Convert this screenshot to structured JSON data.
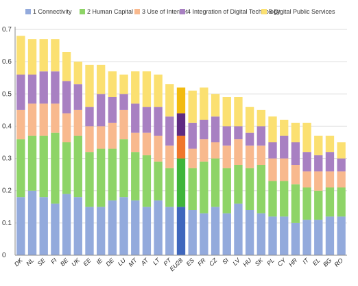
{
  "colors": {
    "c1": "#93aadc",
    "c2": "#8ed467",
    "c3": "#f8b98e",
    "c4": "#a880c2",
    "c5": "#fbe071",
    "avg1": "#3f67bd",
    "avg2": "#3fb53a",
    "avg3": "#f0772c",
    "avg4": "#5f2a82",
    "avg5": "#f2bb10",
    "grid": "#dcdcdc",
    "axis": "#888888"
  },
  "chart_data": {
    "type": "bar",
    "stacked": true,
    "grid": true,
    "legend_position": "top",
    "ylim": [
      0,
      0.7
    ],
    "yticks": [
      "0",
      "0.1",
      "0.2",
      "0.3",
      "0.4",
      "0.5",
      "0.6",
      "0.7"
    ],
    "ytick_values": [
      0,
      0.1,
      0.2,
      0.3,
      0.4,
      0.5,
      0.6,
      0.7
    ],
    "highlight_category": "EU28",
    "categories": [
      "DK",
      "NL",
      "SE",
      "FI",
      "BE",
      "UK",
      "EE",
      "IE",
      "DE",
      "LU",
      "MT",
      "AT",
      "LT",
      "PT",
      "EU28",
      "ES",
      "FR",
      "CZ",
      "SI",
      "LV",
      "HU",
      "SK",
      "PL",
      "CY",
      "HR",
      "IT",
      "EL",
      "BG",
      "RO"
    ],
    "series": [
      {
        "name": "1 Connectivity",
        "color_key": "c1",
        "values": [
          0.18,
          0.2,
          0.18,
          0.16,
          0.19,
          0.18,
          0.15,
          0.15,
          0.17,
          0.18,
          0.17,
          0.15,
          0.17,
          0.15,
          0.15,
          0.14,
          0.13,
          0.15,
          0.13,
          0.16,
          0.14,
          0.13,
          0.12,
          0.12,
          0.1,
          0.11,
          0.11,
          0.12,
          0.12
        ]
      },
      {
        "name": "2 Human Capital",
        "color_key": "c2",
        "values": [
          0.18,
          0.17,
          0.19,
          0.22,
          0.16,
          0.19,
          0.17,
          0.18,
          0.16,
          0.18,
          0.15,
          0.16,
          0.12,
          0.12,
          0.15,
          0.13,
          0.16,
          0.15,
          0.14,
          0.12,
          0.13,
          0.15,
          0.11,
          0.11,
          0.12,
          0.1,
          0.09,
          0.09,
          0.09
        ]
      },
      {
        "name": "3 Use of Internet",
        "color_key": "c3",
        "values": [
          0.09,
          0.1,
          0.1,
          0.09,
          0.09,
          0.08,
          0.08,
          0.07,
          0.08,
          0.09,
          0.06,
          0.07,
          0.08,
          0.07,
          0.07,
          0.06,
          0.07,
          0.05,
          0.07,
          0.08,
          0.07,
          0.06,
          0.07,
          0.07,
          0.06,
          0.05,
          0.06,
          0.05,
          0.05
        ]
      },
      {
        "name": "4 Integration of Digital Technology",
        "color_key": "c4",
        "values": [
          0.11,
          0.09,
          0.1,
          0.1,
          0.1,
          0.08,
          0.06,
          0.1,
          0.08,
          0.05,
          0.09,
          0.08,
          0.09,
          0.09,
          0.07,
          0.08,
          0.06,
          0.08,
          0.06,
          0.04,
          0.04,
          0.06,
          0.05,
          0.07,
          0.07,
          0.06,
          0.05,
          0.06,
          0.04
        ]
      },
      {
        "name": "5 Digital Public Services",
        "color_key": "c5",
        "values": [
          0.12,
          0.11,
          0.1,
          0.1,
          0.09,
          0.07,
          0.13,
          0.09,
          0.08,
          0.06,
          0.1,
          0.11,
          0.1,
          0.1,
          0.08,
          0.1,
          0.1,
          0.07,
          0.09,
          0.09,
          0.08,
          0.05,
          0.08,
          0.05,
          0.06,
          0.09,
          0.06,
          0.05,
          0.05
        ]
      }
    ]
  }
}
